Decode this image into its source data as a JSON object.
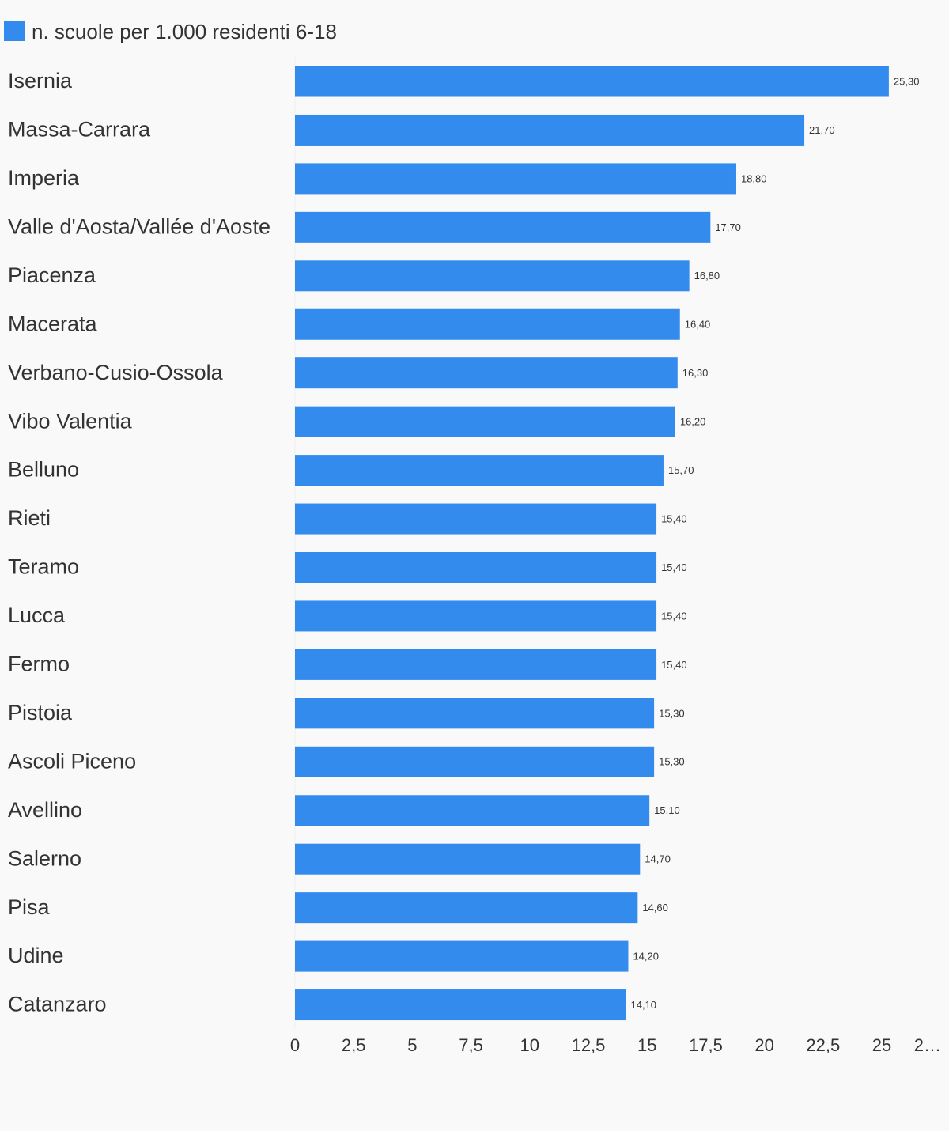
{
  "chart_data": {
    "type": "bar",
    "orientation": "horizontal",
    "categories": [
      "Isernia",
      "Massa-Carrara",
      "Imperia",
      "Valle d'Aosta/Vallée d'Aoste",
      "Piacenza",
      "Macerata",
      "Verbano-Cusio-Ossola",
      "Vibo Valentia",
      "Belluno",
      "Rieti",
      "Teramo",
      "Lucca",
      "Fermo",
      "Pistoia",
      "Ascoli Piceno",
      "Avellino",
      "Salerno",
      "Pisa",
      "Udine",
      "Catanzaro"
    ],
    "series": [
      {
        "name": "n. scuole per 1.000 residenti 6-18",
        "color": "#338bed",
        "values": [
          25.3,
          21.7,
          18.8,
          17.7,
          16.8,
          16.4,
          16.3,
          16.2,
          15.7,
          15.4,
          15.4,
          15.4,
          15.4,
          15.3,
          15.3,
          15.1,
          14.7,
          14.6,
          14.2,
          14.1
        ],
        "value_labels": [
          "25,30",
          "21,70",
          "18,80",
          "17,70",
          "16,80",
          "16,40",
          "16,30",
          "16,20",
          "15,70",
          "15,40",
          "15,40",
          "15,40",
          "15,40",
          "15,30",
          "15,30",
          "15,10",
          "14,70",
          "14,60",
          "14,20",
          "14,10"
        ]
      }
    ],
    "xlim": [
      0,
      27.5
    ],
    "xticks": [
      0,
      {
        "value": 2.5,
        "label": "2,5"
      },
      5,
      {
        "value": 7.5,
        "label": "7,5"
      },
      10,
      {
        "value": 12.5,
        "label": "12,5"
      },
      15,
      {
        "value": 17.5,
        "label": "17,5"
      },
      20,
      {
        "value": 22.5,
        "label": "22,5"
      },
      25,
      {
        "value": 27.5,
        "label": "2…"
      }
    ],
    "legend": "top-left"
  }
}
